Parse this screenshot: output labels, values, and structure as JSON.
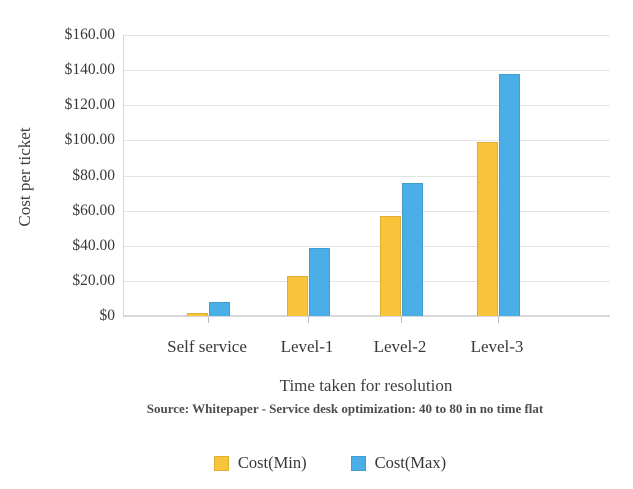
{
  "chart_data": {
    "type": "bar",
    "categories": [
      "Self service",
      "Level-1",
      "Level-2",
      "Level-3"
    ],
    "series": [
      {
        "name": "Cost(Min)",
        "color": "#F9C33C",
        "values": [
          2,
          23,
          57,
          99
        ]
      },
      {
        "name": "Cost(Max)",
        "color": "#4BAFE7",
        "values": [
          8,
          39,
          76,
          138
        ]
      }
    ],
    "xlabel": "Time taken for resolution",
    "ylabel": "Cost per ticket",
    "ylim": [
      0,
      160
    ],
    "ytick_step": 20,
    "ytick_labels": [
      "$0",
      "$20.00",
      "$40.00",
      "$60.00",
      "$80.00",
      "$100.00",
      "$120.00",
      "$140.00",
      "$160.00"
    ],
    "grid": true,
    "legend_position": "bottom",
    "source_note": "Source: Whitepaper - Service desk optimization: 40 to 80 in no time flat"
  }
}
